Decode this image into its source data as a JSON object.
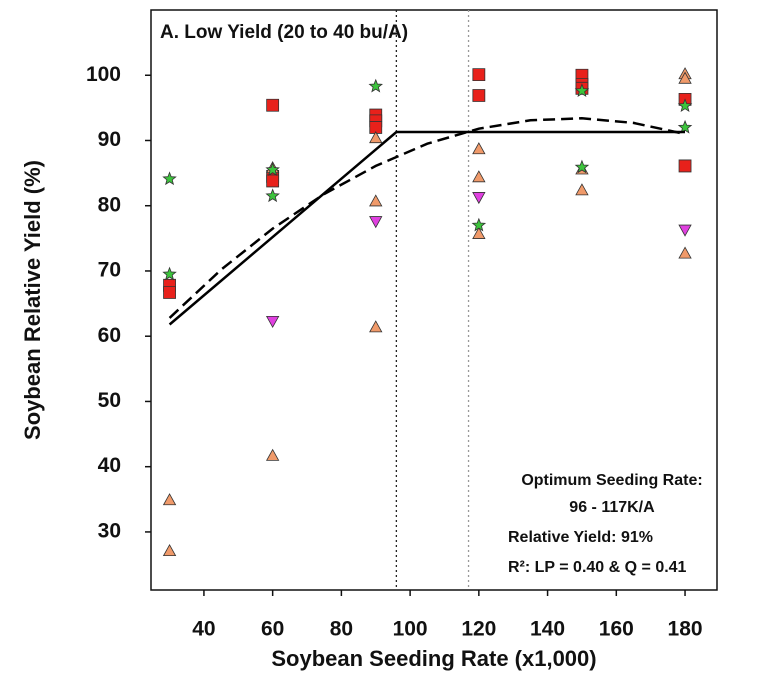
{
  "chart_data": {
    "type": "scatter",
    "title": "A. Low Yield (20 to 40 bu/A)",
    "x_label": "Soybean Seeding Rate (x1,000)",
    "y_label": "Soybean Relative Yield (%)",
    "xlim": [
      24.6,
      189.3
    ],
    "ylim": [
      21.1,
      110
    ],
    "xticks": [
      40,
      60,
      80,
      100,
      120,
      140,
      160,
      180
    ],
    "yticks": [
      30,
      40,
      50,
      60,
      70,
      80,
      90,
      100
    ],
    "annotations": [
      "Optimum Seeding Rate:",
      "96 - 117K/A",
      "Relative Yield: 91%",
      "R²: LP = 0.40 & Q = 0.41"
    ],
    "vlines": [
      {
        "x": 96,
        "color": "#222222",
        "dash": "2,3"
      },
      {
        "x": 117,
        "color": "#999999",
        "dash": "2,3"
      }
    ],
    "series": [
      {
        "mode": "points",
        "marker": "square",
        "color": "#e8211b",
        "x": [
          30,
          30,
          60,
          60,
          60,
          90,
          90,
          90,
          120,
          120,
          150,
          150,
          150,
          180,
          180
        ],
        "values": [
          67.8,
          66.7,
          95.4,
          84.5,
          83.8,
          93.9,
          93.0,
          92.0,
          100.1,
          96.9,
          100,
          98.6,
          98.0,
          96.3,
          86.1
        ]
      },
      {
        "mode": "points",
        "marker": "triangle-up",
        "color": "#f09a6a",
        "x": [
          30,
          30,
          60,
          60,
          90,
          90,
          90,
          120,
          120,
          120,
          150,
          150,
          180,
          180,
          180
        ],
        "values": [
          34.9,
          27.1,
          85.8,
          41.7,
          90.4,
          80.7,
          61.4,
          88.7,
          84.4,
          75.7,
          85.6,
          82.4,
          100.2,
          99.5,
          72.7
        ]
      },
      {
        "mode": "points",
        "marker": "star",
        "color": "#3cc43c",
        "x": [
          30,
          30,
          60,
          60,
          90,
          120,
          150,
          150,
          180,
          180
        ],
        "values": [
          84.1,
          69.5,
          85.5,
          81.5,
          98.3,
          77.0,
          97.6,
          85.9,
          95.3,
          92.0
        ]
      },
      {
        "mode": "points",
        "marker": "triangle-down",
        "color": "#e040e0",
        "x": [
          60,
          90,
          120,
          180
        ],
        "values": [
          62.3,
          77.6,
          81.3,
          76.3
        ]
      },
      {
        "mode": "line",
        "color": "#000000",
        "dash": "none",
        "x": [
          30,
          96,
          180
        ],
        "values": [
          61.8,
          91.3,
          91.3
        ]
      },
      {
        "mode": "line",
        "color": "#000000",
        "dash": "12,6",
        "x": [
          30,
          45,
          60,
          75,
          90,
          105,
          120,
          135,
          150,
          165,
          180
        ],
        "values": [
          62.8,
          70.2,
          76.5,
          81.8,
          86.1,
          89.5,
          91.8,
          93.1,
          93.4,
          92.7,
          91.0
        ]
      }
    ]
  }
}
